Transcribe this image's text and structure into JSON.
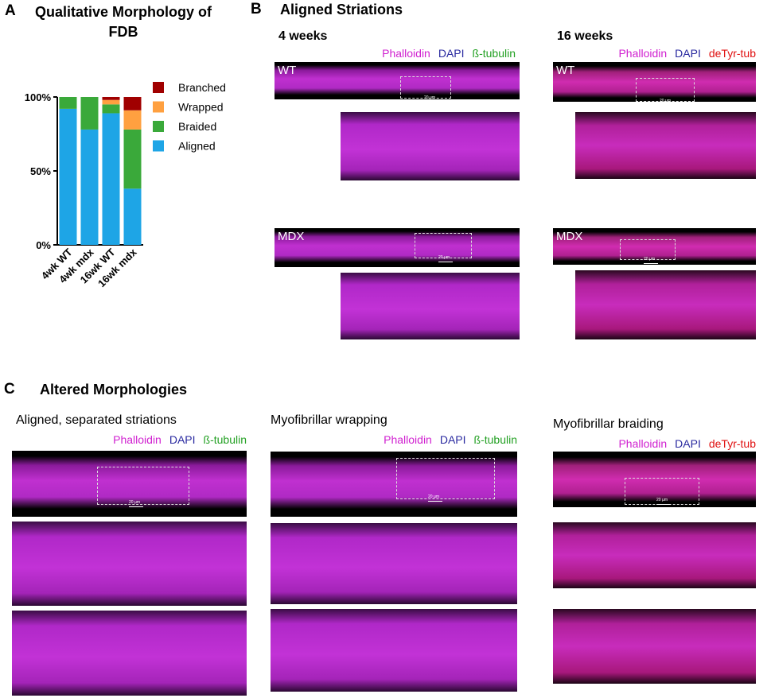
{
  "chart_data": {
    "type": "bar",
    "stacked": true,
    "panel": "A",
    "title": "Qualitative Morphology of FDB",
    "categories": [
      "4wk WT",
      "4wk mdx",
      "16wk WT",
      "16wk mdx"
    ],
    "series": [
      {
        "name": "Aligned",
        "color": "#1ea5e6",
        "values": [
          92,
          78,
          89,
          38
        ]
      },
      {
        "name": "Braided",
        "color": "#3aa93a",
        "values": [
          8,
          22,
          6,
          40
        ]
      },
      {
        "name": "Wrapped",
        "color": "#ffa040",
        "values": [
          0,
          0,
          3,
          13
        ]
      },
      {
        "name": "Branched",
        "color": "#a00000",
        "values": [
          0,
          0,
          2,
          9
        ]
      }
    ],
    "ylim": [
      0,
      100
    ],
    "yticks": [
      {
        "value": 0,
        "label": "0%"
      },
      {
        "value": 50,
        "label": "50%"
      },
      {
        "value": 100,
        "label": "100%"
      }
    ],
    "grid": false,
    "legend": "right"
  },
  "panel_b": {
    "label": "B",
    "title": "Aligned Striations",
    "columns": [
      {
        "title": "4 weeks",
        "stains": [
          {
            "name": "Phalloidin",
            "color": "#d020d0"
          },
          {
            "name": "DAPI",
            "color": "#2a2aa0"
          },
          {
            "name": "ß-tubulin",
            "color": "#22a022"
          }
        ],
        "rows": [
          {
            "label": "WT",
            "scale": "20 µm"
          },
          {
            "label": "MDX",
            "scale": "20 µm"
          }
        ]
      },
      {
        "title": "16 weeks",
        "stains": [
          {
            "name": "Phalloidin",
            "color": "#d020d0"
          },
          {
            "name": "DAPI",
            "color": "#2a2aa0"
          },
          {
            "name": "deTyr-tub",
            "color": "#e01010"
          }
        ],
        "rows": [
          {
            "label": "WT",
            "scale": "20 µm"
          },
          {
            "label": "MDX",
            "scale": "20 µm"
          }
        ]
      }
    ]
  },
  "panel_c": {
    "label": "C",
    "title": "Altered Morphologies",
    "columns": [
      {
        "title": "Aligned, separated striations",
        "stains": [
          {
            "name": "Phalloidin",
            "color": "#d020d0"
          },
          {
            "name": "DAPI",
            "color": "#2a2aa0"
          },
          {
            "name": "ß-tubulin",
            "color": "#22a022"
          }
        ],
        "scale": "20 µm"
      },
      {
        "title": "Myofibrillar wrapping",
        "stains": [
          {
            "name": "Phalloidin",
            "color": "#d020d0"
          },
          {
            "name": "DAPI",
            "color": "#2a2aa0"
          },
          {
            "name": "ß-tubulin",
            "color": "#22a022"
          }
        ],
        "scale": "20 µm"
      },
      {
        "title": "Myofibrillar braiding",
        "stains": [
          {
            "name": "Phalloidin",
            "color": "#d020d0"
          },
          {
            "name": "DAPI",
            "color": "#2a2aa0"
          },
          {
            "name": "deTyr-tub",
            "color": "#e01010"
          }
        ],
        "scale": "20 µm"
      }
    ]
  }
}
